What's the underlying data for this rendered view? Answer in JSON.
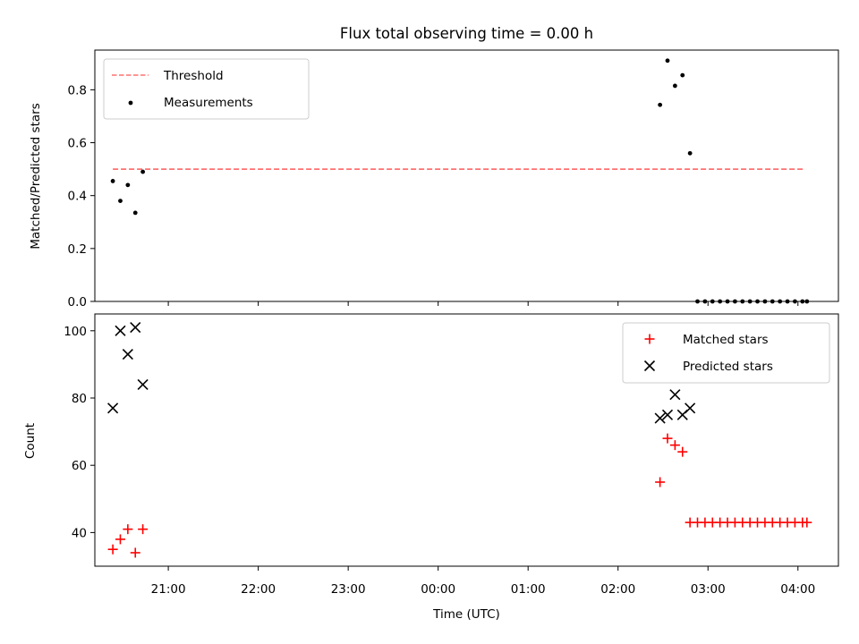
{
  "chart_data": [
    {
      "type": "scatter",
      "title": "Flux total observing time = 0.00 h",
      "ylabel": "Matched/Predicted stars",
      "xlabel": "",
      "ylim": [
        0,
        0.95
      ],
      "yticks": [
        0.0,
        0.2,
        0.4,
        0.6,
        0.8
      ],
      "ytick_labels": [
        "0.0",
        "0.2",
        "0.4",
        "0.6",
        "0.8"
      ],
      "legend_position": "top-left",
      "series": [
        {
          "name": "Threshold",
          "style": "dashed-line",
          "color": "#ff7070",
          "x": [
            "20:23",
            "04:05"
          ],
          "y": [
            0.5,
            0.5
          ]
        },
        {
          "name": "Measurements",
          "style": "dot",
          "color": "#000000",
          "x": [
            "20:23",
            "20:28",
            "20:33",
            "20:38",
            "20:43",
            "02:28",
            "02:33",
            "02:38",
            "02:43",
            "02:48",
            "02:53",
            "02:58",
            "03:03",
            "03:08",
            "03:13",
            "03:18",
            "03:23",
            "03:28",
            "03:33",
            "03:38",
            "03:43",
            "03:48",
            "03:53",
            "03:58",
            "04:03",
            "04:06"
          ],
          "y": [
            0.455,
            0.38,
            0.44,
            0.335,
            0.49,
            0.743,
            0.91,
            0.815,
            0.855,
            0.56,
            0,
            0,
            0,
            0,
            0,
            0,
            0,
            0,
            0,
            0,
            0,
            0,
            0,
            0,
            0,
            0
          ]
        }
      ]
    },
    {
      "type": "scatter",
      "title": "",
      "ylabel": "Count",
      "xlabel": "Time (UTC)",
      "ylim": [
        30,
        105
      ],
      "yticks": [
        40,
        60,
        80,
        100
      ],
      "ytick_labels": [
        "40",
        "60",
        "80",
        "100"
      ],
      "legend_position": "top-right",
      "series": [
        {
          "name": "Matched stars",
          "marker": "plus",
          "color": "#ff0000",
          "x": [
            "20:23",
            "20:28",
            "20:33",
            "20:38",
            "20:43",
            "02:28",
            "02:33",
            "02:38",
            "02:43",
            "02:48",
            "02:53",
            "02:58",
            "03:03",
            "03:08",
            "03:13",
            "03:18",
            "03:23",
            "03:28",
            "03:33",
            "03:38",
            "03:43",
            "03:48",
            "03:53",
            "03:58",
            "04:03",
            "04:06"
          ],
          "y": [
            35,
            38,
            41,
            34,
            41,
            55,
            68,
            66,
            64,
            43,
            43,
            43,
            43,
            43,
            43,
            43,
            43,
            43,
            43,
            43,
            43,
            43,
            43,
            43,
            43,
            43
          ]
        },
        {
          "name": "Predicted stars",
          "marker": "x",
          "color": "#000000",
          "x": [
            "20:23",
            "20:28",
            "20:33",
            "20:38",
            "20:43",
            "02:28",
            "02:33",
            "02:38",
            "02:43",
            "02:48"
          ],
          "y": [
            77,
            100,
            93,
            101,
            84,
            74,
            75,
            81,
            75,
            77
          ]
        }
      ]
    }
  ],
  "x_axis": {
    "start": "20:11",
    "end": "04:27",
    "ticks": [
      "21:00",
      "22:00",
      "23:00",
      "00:00",
      "01:00",
      "02:00",
      "03:00",
      "04:00"
    ]
  }
}
